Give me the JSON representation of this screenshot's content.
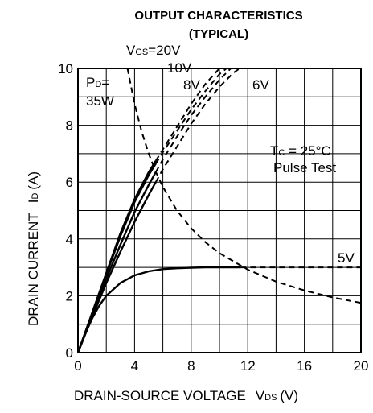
{
  "chart_data": {
    "type": "line",
    "title": "OUTPUT CHARACTERISTICS",
    "subtitle": "(TYPICAL)",
    "xlabel": {
      "main": "DRAIN-SOURCE VOLTAGE",
      "sym": "V",
      "sub": "DS",
      "unit": "(V)"
    },
    "ylabel": {
      "main": "DRAIN CURRENT",
      "sym": "I",
      "sub": "D",
      "unit": "(A)"
    },
    "xlim": [
      0,
      20
    ],
    "ylim": [
      0,
      10
    ],
    "xticks": [
      0,
      4,
      8,
      12,
      16,
      20
    ],
    "yticks": [
      0,
      2,
      4,
      6,
      8,
      10
    ],
    "grid": true,
    "series": [
      {
        "name": "VGS=20V",
        "style": "solid-to-dashed",
        "solid_until_x": 5.5,
        "x": [
          0,
          1,
          2,
          3,
          4,
          5,
          5.5,
          6,
          7,
          8,
          9,
          10,
          10.5
        ],
        "y": [
          0,
          1.4,
          2.8,
          4.2,
          5.4,
          6.35,
          6.75,
          7.15,
          7.95,
          8.75,
          9.45,
          10.0,
          10.2
        ]
      },
      {
        "name": "10V",
        "style": "solid-to-dashed",
        "solid_until_x": 5.5,
        "x": [
          0,
          1,
          2,
          3,
          4,
          5,
          5.5,
          6,
          7,
          8,
          9,
          10,
          11
        ],
        "y": [
          0,
          1.35,
          2.75,
          4.1,
          5.3,
          6.25,
          6.65,
          7.05,
          7.8,
          8.55,
          9.2,
          9.8,
          10.2
        ]
      },
      {
        "name": "8V",
        "style": "solid-to-dashed",
        "solid_until_x": 5.5,
        "x": [
          0,
          1,
          2,
          3,
          4,
          5,
          5.5,
          6,
          7,
          8,
          9,
          10,
          11,
          11.5
        ],
        "y": [
          0,
          1.3,
          2.6,
          3.8,
          4.95,
          5.9,
          6.35,
          6.8,
          7.6,
          8.35,
          9.0,
          9.6,
          10.1,
          10.2
        ]
      },
      {
        "name": "6V",
        "style": "solid-to-dashed",
        "solid_until_x": 5.5,
        "x": [
          0,
          1,
          2,
          3,
          4,
          5,
          5.5,
          6,
          7,
          8,
          9,
          10,
          11,
          12
        ],
        "y": [
          0,
          1.25,
          2.45,
          3.55,
          4.6,
          5.55,
          6.0,
          6.45,
          7.25,
          8.05,
          8.75,
          9.35,
          9.85,
          10.2
        ]
      },
      {
        "name": "5V",
        "style": "solid-to-dashed",
        "solid_until_x": 11.5,
        "x": [
          0,
          0.5,
          1,
          1.5,
          2,
          3,
          4,
          5,
          6,
          7,
          8,
          9,
          10,
          11.5,
          14,
          20
        ],
        "y": [
          0,
          0.65,
          1.2,
          1.65,
          2.0,
          2.45,
          2.72,
          2.86,
          2.94,
          2.97,
          2.99,
          3.0,
          3.0,
          3.0,
          3.0,
          3.0
        ]
      },
      {
        "name": "PD=35W",
        "style": "dashed",
        "x": [
          3.5,
          4,
          4.5,
          5,
          5.5,
          6,
          7,
          8,
          9,
          10,
          12,
          14,
          16,
          18,
          20
        ],
        "y": [
          10.0,
          8.75,
          7.78,
          7.0,
          6.36,
          5.83,
          5.0,
          4.375,
          3.89,
          3.5,
          2.92,
          2.5,
          2.19,
          1.94,
          1.75
        ]
      }
    ],
    "annotations": [
      {
        "id": "vgs",
        "sym": "V",
        "sub": "GS",
        "rest": "=20V"
      },
      {
        "id": "v10",
        "text": "10V"
      },
      {
        "id": "v8",
        "text": "8V"
      },
      {
        "id": "v6",
        "text": "6V"
      },
      {
        "id": "v5",
        "text": "5V"
      },
      {
        "id": "pd1",
        "sym": "P",
        "sub": "D",
        "rest": "="
      },
      {
        "id": "pd2",
        "text": "35W"
      },
      {
        "id": "tc",
        "sym": "T",
        "sub": "C",
        "rest": " = 25°C"
      },
      {
        "id": "pulse",
        "text": "Pulse Test"
      }
    ]
  }
}
